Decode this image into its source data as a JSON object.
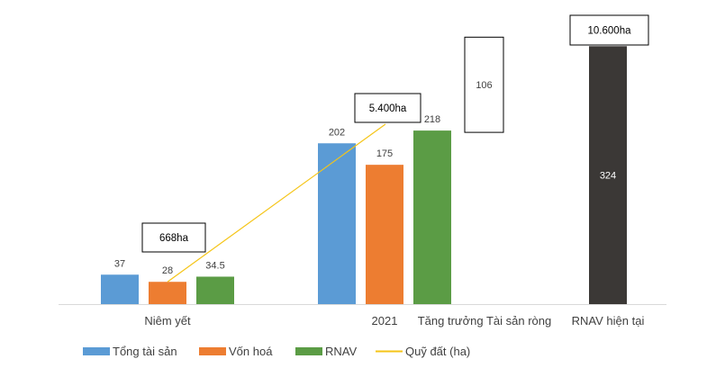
{
  "chart_data": {
    "type": "bar",
    "categories": [
      "Niêm yết",
      "2021",
      "Tăng trưởng Tài sản ròng",
      "RNAV hiện tại"
    ],
    "series": [
      {
        "name": "Tổng tài sản",
        "color": "#5b9bd5",
        "values": [
          37,
          202,
          null,
          null
        ],
        "labels": [
          "37",
          "202",
          "",
          ""
        ]
      },
      {
        "name": "Vốn hoá",
        "color": "#ed7d31",
        "values": [
          28,
          175,
          null,
          null
        ],
        "labels": [
          "28",
          "175",
          "",
          ""
        ]
      },
      {
        "name": "RNAV",
        "color": "#5b9c45",
        "values": [
          34.5,
          218,
          null,
          null
        ],
        "labels": [
          "34.5",
          "218",
          "",
          ""
        ]
      }
    ],
    "waterfall": [
      {
        "category": "Tăng trưởng Tài sản ròng",
        "base": 218,
        "value": 106,
        "label": "106",
        "style": "floating-box"
      },
      {
        "category": "RNAV hiện tại",
        "base": 0,
        "value": 324,
        "label": "324",
        "color": "#3b3836"
      }
    ],
    "line_series": {
      "name": "Quỹ đất (ha)",
      "color": "#f5c518",
      "points": [
        {
          "category": "Niêm yết",
          "value": 668,
          "label": "668ha"
        },
        {
          "category": "2021",
          "value": 5400,
          "label": "5.400ha"
        },
        {
          "category": "RNAV hiện tại",
          "value": 10600,
          "label": "10.600ha"
        }
      ]
    },
    "ylim": [
      0,
      330
    ],
    "grid": false,
    "legend_position": "bottom-left"
  }
}
